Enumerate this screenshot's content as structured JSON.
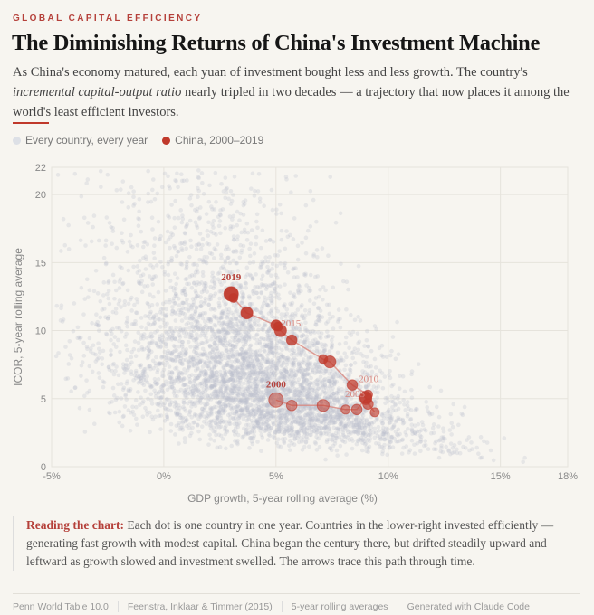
{
  "header": {
    "kicker": "GLOBAL CAPITAL EFFICIENCY",
    "title": "The Diminishing Returns of China's Investment Machine",
    "subtitle_pre": "As China's economy matured, each yuan of investment bought less and less growth. The country's ",
    "subtitle_em": "incremental capital-output ratio",
    "subtitle_post": " nearly tripled in two decades — a trajectory that now places it among the world's least efficient investors."
  },
  "legend": {
    "all": "Every country, every year",
    "china": "China, 2000–2019"
  },
  "colors": {
    "background_dots": "#b9c0cc",
    "china": "#c0392b",
    "accent": "#b5403a"
  },
  "chart_data": {
    "type": "scatter",
    "xlabel": "GDP growth, 5-year rolling average (%)",
    "ylabel": "ICOR, 5-year rolling average",
    "xlim": [
      -5,
      18
    ],
    "ylim": [
      0,
      22
    ],
    "xticks": [
      {
        "v": -5,
        "label": "-5%"
      },
      {
        "v": 0,
        "label": "0%"
      },
      {
        "v": 5,
        "label": "5%"
      },
      {
        "v": 10,
        "label": "10%"
      },
      {
        "v": 15,
        "label": "15%"
      },
      {
        "v": 18,
        "label": "18%"
      }
    ],
    "yticks": [
      {
        "v": 0,
        "label": "0"
      },
      {
        "v": 5,
        "label": "5"
      },
      {
        "v": 10,
        "label": "10"
      },
      {
        "v": 15,
        "label": "15"
      },
      {
        "v": 20,
        "label": "20"
      },
      {
        "v": 22,
        "label": "22"
      }
    ],
    "grid": true,
    "china": [
      {
        "year": 2000,
        "x": 5.0,
        "y": 4.9,
        "label": "2000"
      },
      {
        "year": 2001,
        "x": 5.7,
        "y": 4.5
      },
      {
        "year": 2002,
        "x": 7.1,
        "y": 4.5
      },
      {
        "year": 2003,
        "x": 8.1,
        "y": 4.2
      },
      {
        "year": 2004,
        "x": 8.6,
        "y": 4.2
      },
      {
        "year": 2005,
        "x": 9.0,
        "y": 5.0,
        "label": "2005"
      },
      {
        "year": 2006,
        "x": 9.4,
        "y": 4.0
      },
      {
        "year": 2007,
        "x": 9.1,
        "y": 4.6
      },
      {
        "year": 2008,
        "x": 9.0,
        "y": 5.1
      },
      {
        "year": 2009,
        "x": 9.1,
        "y": 5.3
      },
      {
        "year": 2010,
        "x": 8.4,
        "y": 6.0,
        "label": "2010"
      },
      {
        "year": 2011,
        "x": 7.4,
        "y": 7.7
      },
      {
        "year": 2012,
        "x": 7.1,
        "y": 7.9
      },
      {
        "year": 2013,
        "x": 5.7,
        "y": 9.3
      },
      {
        "year": 2014,
        "x": 5.2,
        "y": 10.0
      },
      {
        "year": 2015,
        "x": 5.1,
        "y": 10.3,
        "label": "2015"
      },
      {
        "year": 2016,
        "x": 5.0,
        "y": 10.4
      },
      {
        "year": 2017,
        "x": 3.7,
        "y": 11.3
      },
      {
        "year": 2018,
        "x": 3.1,
        "y": 12.4
      },
      {
        "year": 2019,
        "x": 3.0,
        "y": 12.7,
        "label": "2019"
      }
    ]
  },
  "note": {
    "lead": "Reading the chart:",
    "text": " Each dot is one country in one year. Countries in the lower-right invested efficiently — generating fast growth with modest capital. China began the century there, but drifted steadily upward and leftward as growth slowed and investment swelled. The arrows trace this path through time."
  },
  "footer": [
    "Penn World Table 10.0",
    "Feenstra, Inklaar & Timmer (2015)",
    "5-year rolling averages",
    "Generated with Claude Code"
  ]
}
